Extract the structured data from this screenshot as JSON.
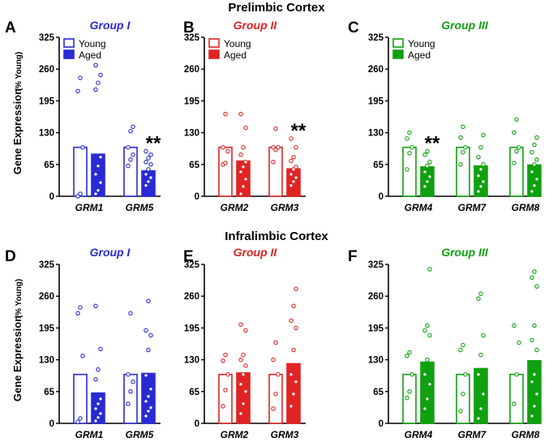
{
  "figure": {
    "title_top": "Prelimbic Cortex",
    "title_bottom": "Infralimbic Cortex",
    "ylabel_main": "Gene Expression",
    "ylabel_sub": "(% Young)",
    "legend": {
      "young": "Young",
      "aged": "Aged"
    },
    "colors": {
      "group1": "#2a2ad4",
      "group2": "#e02424",
      "group3": "#10a010"
    }
  },
  "chart_data": [
    {
      "type": "bar",
      "panel": "A",
      "region": "Prelimbic Cortex",
      "group_label": "Group I",
      "color": "#2a2ad4",
      "categories": [
        "GRM1",
        "GRM5"
      ],
      "ylim": [
        0,
        325
      ],
      "yticks": [
        0,
        65,
        130,
        195,
        260,
        325
      ],
      "legend": true,
      "series": [
        {
          "name": "Young",
          "values": [
            100,
            100
          ],
          "points": [
            [
              0,
              5,
              100,
              215,
              242
            ],
            [
              62,
              75,
              85,
              100,
              133,
              142
            ]
          ]
        },
        {
          "name": "Aged",
          "values": [
            86,
            52
          ],
          "points": [
            [
              5,
              12,
              28,
              45,
              62,
              80,
              218,
              232,
              248,
              268
            ],
            [
              22,
              30,
              38,
              45,
              55,
              65,
              70,
              78,
              85,
              92
            ]
          ]
        }
      ],
      "annotations": [
        {
          "text": "**",
          "category": "GRM5"
        }
      ]
    },
    {
      "type": "bar",
      "panel": "B",
      "region": "Prelimbic Cortex",
      "group_label": "Group II",
      "color": "#e02424",
      "categories": [
        "GRM2",
        "GRM3"
      ],
      "ylim": [
        0,
        325
      ],
      "yticks": [
        0,
        65,
        130,
        195,
        260,
        325
      ],
      "legend": true,
      "series": [
        {
          "name": "Young",
          "values": [
            100,
            100
          ],
          "points": [
            [
              65,
              68,
              92,
              100,
              168
            ],
            [
              70,
              95,
              100,
              100,
              138
            ]
          ]
        },
        {
          "name": "Aged",
          "values": [
            72,
            56
          ],
          "points": [
            [
              5,
              20,
              35,
              50,
              60,
              70,
              85,
              100,
              140,
              168
            ],
            [
              22,
              30,
              38,
              45,
              55,
              60,
              72,
              80,
              100,
              118
            ]
          ]
        }
      ],
      "annotations": [
        {
          "text": "**",
          "category": "GRM3"
        }
      ]
    },
    {
      "type": "bar",
      "panel": "C",
      "region": "Prelimbic Cortex",
      "group_label": "Group III",
      "color": "#10a010",
      "categories": [
        "GRM4",
        "GRM7",
        "GRM8"
      ],
      "ylim": [
        0,
        325
      ],
      "yticks": [
        0,
        65,
        130,
        195,
        260,
        325
      ],
      "legend": true,
      "series": [
        {
          "name": "Young",
          "values": [
            100,
            100,
            100
          ],
          "points": [
            [
              55,
              88,
              100,
              118,
              130
            ],
            [
              65,
              90,
              100,
              120,
              142
            ],
            [
              68,
              92,
              100,
              130,
              157
            ]
          ]
        },
        {
          "name": "Aged",
          "values": [
            60,
            62,
            64
          ],
          "points": [
            [
              20,
              30,
              40,
              50,
              62,
              70,
              85,
              92
            ],
            [
              10,
              20,
              30,
              42,
              55,
              65,
              80,
              100,
              125
            ],
            [
              10,
              22,
              35,
              50,
              65,
              75,
              90,
              105,
              120
            ]
          ]
        }
      ],
      "annotations": [
        {
          "text": "**",
          "category": "GRM4"
        }
      ]
    },
    {
      "type": "bar",
      "panel": "D",
      "region": "Infralimbic Cortex",
      "group_label": "Group I",
      "color": "#2a2ad4",
      "categories": [
        "GRM1",
        "GRM5"
      ],
      "ylim": [
        0,
        325
      ],
      "yticks": [
        0,
        65,
        130,
        195,
        260,
        325
      ],
      "legend": false,
      "series": [
        {
          "name": "Young",
          "values": [
            100,
            100
          ],
          "points": [
            [
              3,
              10,
              138,
              225,
              237
            ],
            [
              40,
              65,
              85,
              100,
              225
            ]
          ]
        },
        {
          "name": "Aged",
          "values": [
            62,
            102
          ],
          "points": [
            [
              5,
              12,
              20,
              30,
              40,
              50,
              90,
              110,
              152,
              240
            ],
            [
              15,
              25,
              32,
              45,
              55,
              70,
              98,
              150,
              180,
              190,
              250
            ]
          ]
        }
      ],
      "annotations": []
    },
    {
      "type": "bar",
      "panel": "E",
      "region": "Infralimbic Cortex",
      "group_label": "Group II",
      "color": "#e02424",
      "categories": [
        "GRM2",
        "GRM3"
      ],
      "ylim": [
        0,
        325
      ],
      "yticks": [
        0,
        65,
        130,
        195,
        260,
        325
      ],
      "legend": false,
      "series": [
        {
          "name": "Young",
          "values": [
            100,
            100
          ],
          "points": [
            [
              35,
              68,
              100,
              128,
              140
            ],
            [
              30,
              60,
              100,
              130,
              165
            ]
          ]
        },
        {
          "name": "Aged",
          "values": [
            103,
            122
          ],
          "points": [
            [
              20,
              40,
              65,
              80,
              100,
              118,
              130,
              140,
              190,
              202
            ],
            [
              35,
              60,
              85,
              100,
              150,
              195,
              210,
              240,
              275
            ]
          ]
        }
      ],
      "annotations": []
    },
    {
      "type": "bar",
      "panel": "F",
      "region": "Infralimbic Cortex",
      "group_label": "Group III",
      "color": "#10a010",
      "categories": [
        "GRM4",
        "GRM7",
        "GRM8"
      ],
      "ylim": [
        0,
        325
      ],
      "yticks": [
        0,
        65,
        130,
        195,
        260,
        325
      ],
      "legend": false,
      "series": [
        {
          "name": "Young",
          "values": [
            100,
            100,
            100
          ],
          "points": [
            [
              52,
              65,
              100,
              138,
              145
            ],
            [
              25,
              60,
              100,
              150,
              160
            ],
            [
              40,
              100,
              165,
              200
            ]
          ]
        },
        {
          "name": "Aged",
          "values": [
            125,
            112,
            128
          ],
          "points": [
            [
              30,
              50,
              80,
              100,
              130,
              180,
              190,
              200,
              315
            ],
            [
              10,
              30,
              60,
              100,
              140,
              180,
              255,
              265
            ],
            [
              15,
              35,
              60,
              85,
              100,
              150,
              170,
              200,
              280,
              298,
              310
            ]
          ]
        }
      ],
      "annotations": []
    }
  ]
}
